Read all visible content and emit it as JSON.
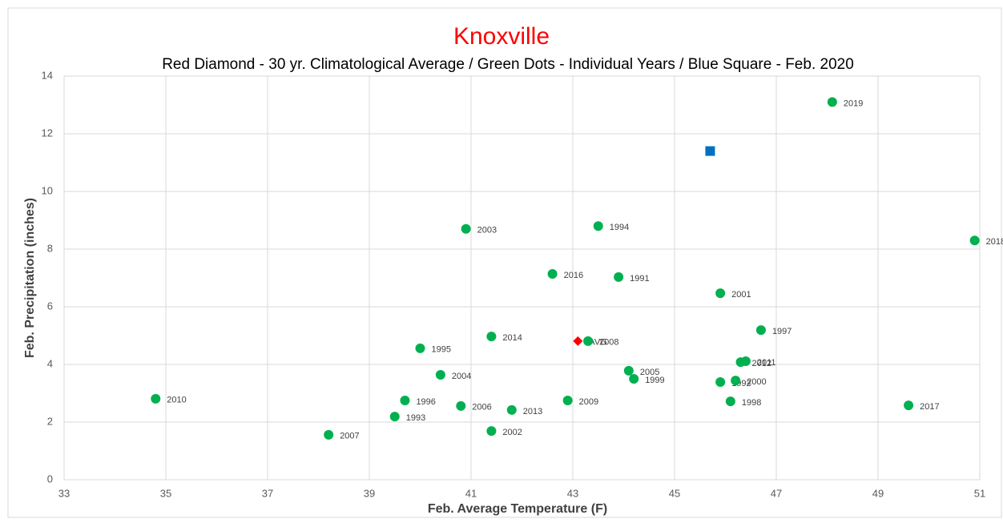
{
  "chart_data": {
    "type": "scatter",
    "title": "Knoxville",
    "subtitle": "Red Diamond - 30 yr. Climatological Average / Green Dots - Individual Years / Blue Square - Feb. 2020",
    "x_label": "Feb. Average Temperature (F)",
    "y_label": "Feb. Precipitation (inches)",
    "xlim": [
      33,
      51
    ],
    "xticks": [
      33,
      35,
      37,
      39,
      41,
      43,
      45,
      47,
      49,
      51
    ],
    "ylim": [
      0,
      14
    ],
    "yticks": [
      0,
      2,
      4,
      6,
      8,
      10,
      12,
      14
    ],
    "grid": true,
    "series": [
      {
        "color": "#ff0000",
        "marker": "diamond",
        "x": [
          43.1
        ],
        "values": [
          4.81
        ],
        "labels": [
          "AVG"
        ]
      },
      {
        "color": "#00b050",
        "marker": "circle",
        "x": [
          48.1,
          40.9,
          43.5,
          50.9,
          42.6,
          43.9,
          45.9,
          46.7,
          41.4,
          43.3,
          40.0,
          46.3,
          46.4,
          44.1,
          44.2,
          40.4,
          46.2,
          45.9,
          34.8,
          39.7,
          46.1,
          42.9,
          40.8,
          49.6,
          41.8,
          39.5,
          41.4,
          38.2
        ],
        "values": [
          13.1,
          8.7,
          8.8,
          8.3,
          7.14,
          7.03,
          6.47,
          5.19,
          4.97,
          4.81,
          4.56,
          4.08,
          4.11,
          3.78,
          3.5,
          3.64,
          3.44,
          3.39,
          2.81,
          2.75,
          2.72,
          2.75,
          2.56,
          2.58,
          2.42,
          2.19,
          1.69,
          1.56
        ],
        "labels": [
          "2019",
          "2003",
          "1994",
          "2018",
          "2016",
          "1991",
          "2001",
          "1997",
          "2014",
          "2008",
          "1995",
          "2012",
          "2011",
          "2005",
          "1999",
          "2004",
          "2000",
          "1992",
          "2010",
          "1996",
          "1998",
          "2009",
          "2006",
          "2017",
          "2013",
          "1993",
          "2002",
          "2007"
        ]
      },
      {
        "color": "#0070c0",
        "marker": "square",
        "x": [
          45.7
        ],
        "values": [
          11.4
        ]
      }
    ]
  }
}
